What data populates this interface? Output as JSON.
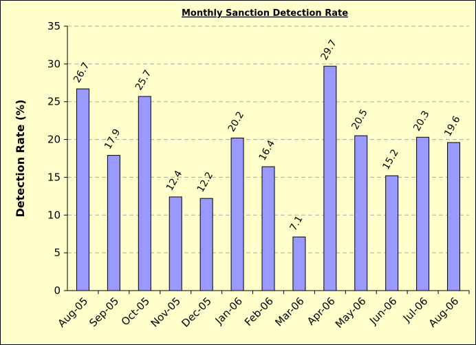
{
  "chart_data": {
    "type": "bar",
    "title": "Monthly Sanction Detection Rate",
    "y_label": "Detection Rate (%)",
    "categories": [
      "Aug-05",
      "Sep-05",
      "Oct-05",
      "Nov-05",
      "Dec-05",
      "Jan-06",
      "Feb-06",
      "Mar-06",
      "Apr-06",
      "May-06",
      "Jun-06",
      "Jul-06",
      "Aug-06"
    ],
    "values": [
      26.7,
      17.9,
      25.7,
      12.4,
      12.2,
      20.2,
      16.4,
      7.1,
      29.7,
      20.5,
      15.2,
      20.3,
      19.6
    ],
    "color": "#9999ff",
    "ylim": [
      0,
      35
    ],
    "yticks": [
      0,
      5,
      10,
      15,
      20,
      25,
      30,
      35
    ],
    "grid": true
  }
}
